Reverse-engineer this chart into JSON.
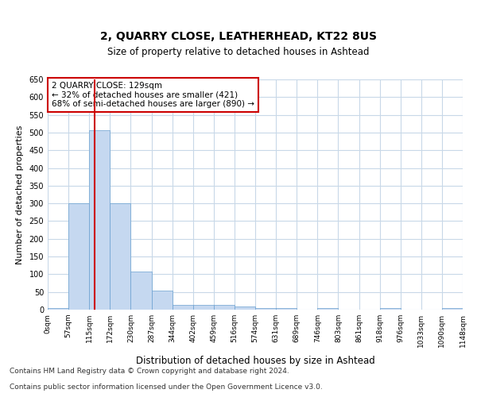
{
  "title1": "2, QUARRY CLOSE, LEATHERHEAD, KT22 8US",
  "title2": "Size of property relative to detached houses in Ashtead",
  "xlabel": "Distribution of detached houses by size in Ashtead",
  "ylabel": "Number of detached properties",
  "bin_labels": [
    "0sqm",
    "57sqm",
    "115sqm",
    "172sqm",
    "230sqm",
    "287sqm",
    "344sqm",
    "402sqm",
    "459sqm",
    "516sqm",
    "574sqm",
    "631sqm",
    "689sqm",
    "746sqm",
    "803sqm",
    "861sqm",
    "918sqm",
    "976sqm",
    "1033sqm",
    "1090sqm",
    "1148sqm"
  ],
  "bar_heights": [
    5,
    300,
    507,
    300,
    107,
    53,
    13,
    13,
    13,
    8,
    5,
    5,
    0,
    4,
    0,
    0,
    4,
    0,
    0,
    4
  ],
  "bar_color": "#c5d8f0",
  "bar_edge_color": "#6aa0d0",
  "red_line_x": 2.258,
  "annotation_text": "2 QUARRY CLOSE: 129sqm\n← 32% of detached houses are smaller (421)\n68% of semi-detached houses are larger (890) →",
  "annotation_box_color": "#ffffff",
  "annotation_box_edge": "#cc0000",
  "footer1": "Contains HM Land Registry data © Crown copyright and database right 2024.",
  "footer2": "Contains public sector information licensed under the Open Government Licence v3.0.",
  "ylim": [
    0,
    650
  ],
  "yticks": [
    0,
    50,
    100,
    150,
    200,
    250,
    300,
    350,
    400,
    450,
    500,
    550,
    600,
    650
  ],
  "background_color": "#ffffff",
  "grid_color": "#c8d8e8"
}
